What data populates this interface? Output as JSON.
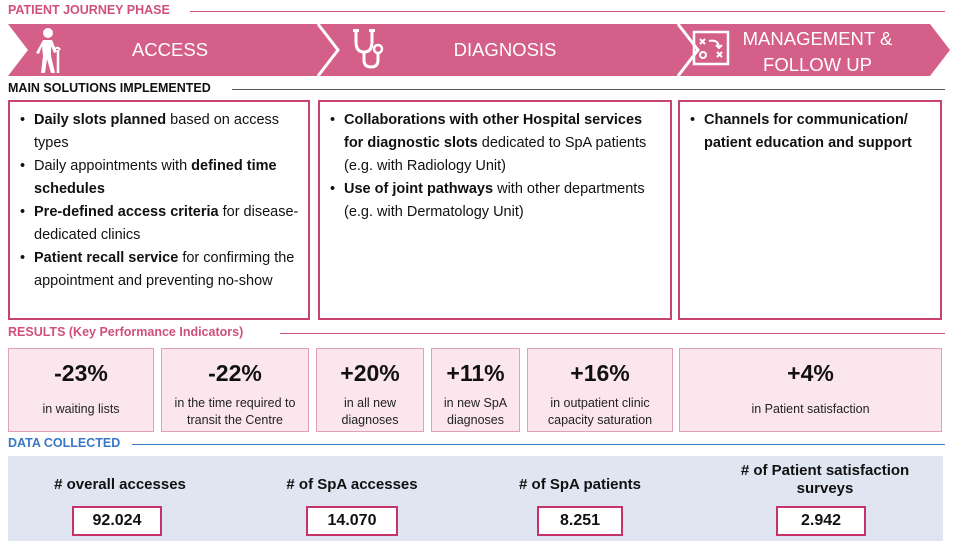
{
  "sections": {
    "journey": "PATIENT JOURNEY PHASE",
    "solutions": "MAIN SOLUTIONS IMPLEMENTED",
    "results": "RESULTS (Key Performance Indicators)",
    "data": "DATA COLLECTED"
  },
  "phases": {
    "access": {
      "line1": "ACCESS",
      "icon": "elderly-person-with-cane-icon"
    },
    "diagnosis": {
      "line1": "DIAGNOSIS",
      "icon": "stethoscope-icon"
    },
    "management": {
      "line1": "MANAGEMENT &",
      "line2": "FOLLOW UP",
      "icon": "strategy-board-icon"
    }
  },
  "solutions": {
    "access": [
      {
        "bold": "Daily slots planned",
        "rest": " based on access types"
      },
      {
        "pre": "Daily appointments with ",
        "bold": "defined time schedules"
      },
      {
        "bold": "Pre-defined access criteria",
        "rest": " for disease-dedicated clinics"
      },
      {
        "bold": "Patient recall service",
        "rest": " for confirming the appointment and preventing no-show"
      }
    ],
    "diagnosis": [
      {
        "bold": "Collaborations with other Hospital services for diagnostic slots",
        "rest": " dedicated to SpA patients (e.g. with Radiology Unit)"
      },
      {
        "bold": "Use of joint pathways",
        "rest": " with other departments (e.g. with Dermatology Unit)"
      }
    ],
    "management": [
      {
        "bold": "Channels for communication/ patient education and support"
      }
    ]
  },
  "kpis": [
    {
      "value": "-23%",
      "desc": "in waiting lists"
    },
    {
      "value": "-22%",
      "desc": "in the time required to transit the Centre"
    },
    {
      "value": "+20%",
      "desc": "in all new diagnoses"
    },
    {
      "value": "+11%",
      "desc": "in new SpA diagnoses"
    },
    {
      "value": "+16%",
      "desc": "in outpatient clinic capacity saturation"
    },
    {
      "value": "+4%",
      "desc": "in Patient satisfaction"
    }
  ],
  "data_collected": [
    {
      "label": "# overall accesses",
      "value": "92.024"
    },
    {
      "label": "# of SpA accesses",
      "value": "14.070"
    },
    {
      "label": "# of SpA patients",
      "value": "8.251"
    },
    {
      "label": "# of Patient satisfaction surveys",
      "value": "2.942"
    }
  ],
  "colors": {
    "phase_fill": "#d4608a",
    "box_border": "#c9436f",
    "kpi_fill": "#fbe6ee",
    "data_band": "#dfe6f1",
    "value_border": "#c6336a",
    "blue_label": "#3a78c4"
  }
}
